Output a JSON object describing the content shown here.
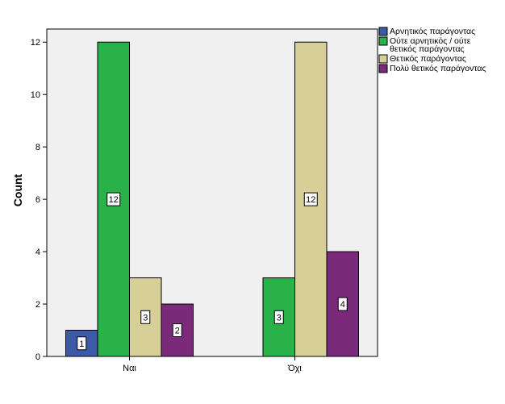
{
  "chart_data": {
    "type": "bar",
    "categories": [
      "Ναι",
      "Όχι"
    ],
    "series": [
      {
        "name": "Αρνητικός παράγοντας",
        "color": "#3d5aa8",
        "values": [
          1,
          0
        ]
      },
      {
        "name": "Ούτε αρνητικός / ούτε θετικός παράγοντας",
        "name_lines": [
          "Ούτε αρνητικός / ούτε",
          "θετικός παράγοντας"
        ],
        "color": "#29b24a",
        "values": [
          12,
          3
        ]
      },
      {
        "name": "Θετικός παράγοντας",
        "color": "#d6cf97",
        "values": [
          3,
          12
        ]
      },
      {
        "name": "Πολύ θετικός παράγοντας",
        "color": "#7b2a7b",
        "values": [
          2,
          4
        ]
      }
    ],
    "xlabel": "",
    "ylabel": "Count",
    "ylim": [
      0,
      12.5
    ],
    "yticks": [
      0,
      2,
      4,
      6,
      8,
      10,
      12
    ],
    "legend_position": "right",
    "plot_background": "#f0f0f0",
    "grid": false,
    "data_labels": true
  }
}
